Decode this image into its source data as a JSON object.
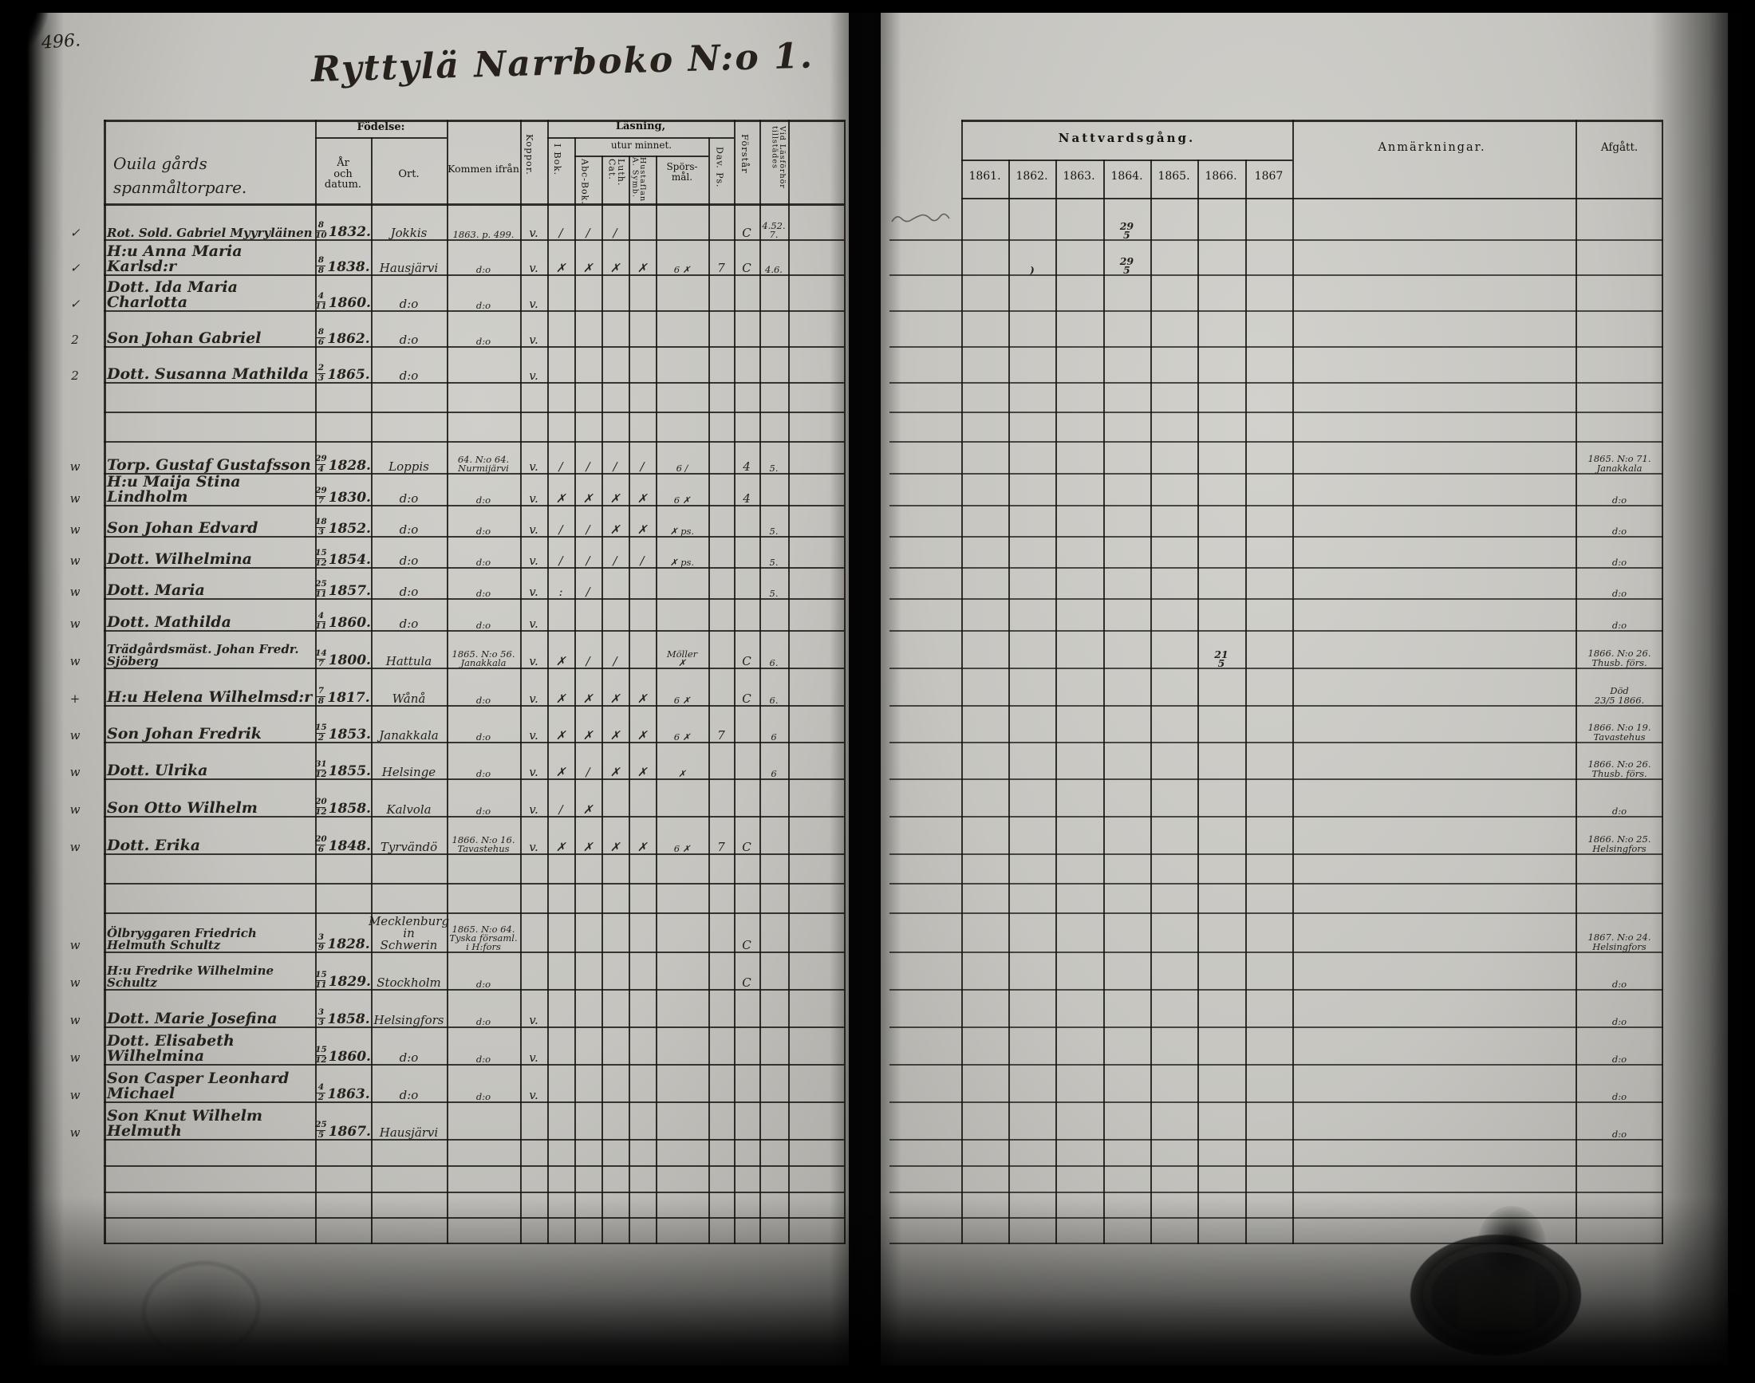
{
  "page": {
    "number": "496.",
    "title": "Ryttylä  Narrboko  N:o 1."
  },
  "header": {
    "household": "Ouila gårds\nspanmåltorpare.",
    "fodelse": "Födelse:",
    "ar_datum": "År\noch datum.",
    "ort": "Ort.",
    "kommen": "Kommen ifrån",
    "koppor": "Koppor.",
    "lasning": "Läsning,",
    "utur_minnet": "utur minnet.",
    "i_bok": "I Bok.",
    "abc_bok": "Abc-Bok.",
    "luth_cat": "Luth. Cat.",
    "symb": "Hustaflan  A. Symb.",
    "spors": "Spörs-\nmål.",
    "dav_ps": "Dav. Ps.",
    "forstar": "Förstår",
    "vidlas": "Vid Läsförhör tillstädes",
    "nattvardsgang": "Nattvardsgång.",
    "anmarkningar": "Anmärkningar.",
    "afgatt": "Afgått."
  },
  "years": [
    "1861.",
    "1862.",
    "1863.",
    "1864.",
    "1865.",
    "1866.",
    "1867"
  ],
  "rows": [
    {
      "mark": "✓",
      "name": "Rot. Sold. Gabriel Myyryläinen",
      "bd": "8",
      "bm": "10",
      "by": "1832.",
      "ort": "Jokkis",
      "kommen": "1863. p. 499.",
      "koppor": "v.",
      "ibok": "∕",
      "abc": "∕",
      "luth": "∕",
      "forstar": "C",
      "vidlas": "4.52.\n7.",
      "natt": {
        "1864": "29\n5"
      }
    },
    {
      "mark": "✓",
      "name": "H:u Anna Maria Karlsd:r",
      "bd": "8",
      "bm": "8",
      "by": "1838.",
      "ort": "Hausjärvi",
      "kommen": "d:o",
      "koppor": "v.",
      "ibok": "✗",
      "abc": "✗",
      "luth": "✗",
      "symb": "✗",
      "spors": "6 ✗",
      "dav": "7",
      "forstar": "C",
      "vidlas": "4.6.",
      "natt": {
        "1862": ")",
        "1864": "29\n5"
      }
    },
    {
      "mark": "✓",
      "name": "Dott. Ida Maria Charlotta",
      "bd": "4",
      "bm": "11",
      "by": "1860.",
      "ort": "d:o",
      "kommen": "d:o",
      "koppor": "v."
    },
    {
      "mark": "2",
      "name": "Son Johan Gabriel",
      "bd": "8",
      "bm": "6",
      "by": "1862.",
      "ort": "d:o",
      "kommen": "d:o",
      "koppor": "v."
    },
    {
      "mark": "2",
      "name": "Dott. Susanna Mathilda",
      "bd": "2",
      "bm": "3",
      "by": "1865.",
      "ort": "d:o",
      "koppor": "v."
    },
    {
      "mark": "w",
      "name": "Torp. Gustaf Gustafsson",
      "bd": "29",
      "bm": "4",
      "by": "1828.",
      "ort": "Loppis",
      "kommen": "64. N:o 64.\nNurmijärvi",
      "koppor": "v.",
      "ibok": "∕",
      "abc": "∕",
      "luth": "∕",
      "symb": "∕",
      "spors": "6 ∕",
      "forstar": "4",
      "vidlas": "5.",
      "afg": "1865. N:o 71.\nJanakkala"
    },
    {
      "mark": "w",
      "name": "H:u Maija Stina Lindholm",
      "bd": "29",
      "bm": "7",
      "by": "1830.",
      "ort": "d:o",
      "kommen": "d:o",
      "koppor": "v.",
      "ibok": "✗",
      "abc": "✗",
      "luth": "✗",
      "symb": "✗",
      "spors": "6 ✗",
      "forstar": "4",
      "afg": "d:o"
    },
    {
      "mark": "w",
      "name": "Son Johan Edvard",
      "bd": "18",
      "bm": "3",
      "by": "1852.",
      "ort": "d:o",
      "kommen": "d:o",
      "koppor": "v.",
      "ibok": "∕",
      "abc": "∕",
      "luth": "✗",
      "symb": "✗",
      "spors": "✗ ps.",
      "vidlas": "5.",
      "afg": "d:o"
    },
    {
      "mark": "w",
      "name": "Dott. Wilhelmina",
      "bd": "15",
      "bm": "12",
      "by": "1854.",
      "ort": "d:o",
      "kommen": "d:o",
      "koppor": "v.",
      "ibok": "∕",
      "abc": "∕",
      "luth": "∕",
      "symb": "∕",
      "spors": "✗ ps.",
      "vidlas": "5.",
      "afg": "d:o"
    },
    {
      "mark": "w",
      "name": "Dott. Maria",
      "bd": "25",
      "bm": "11",
      "by": "1857.",
      "ort": "d:o",
      "kommen": "d:o",
      "koppor": "v.",
      "ibok": ":",
      "abc": "∕",
      "vidlas": "5.",
      "afg": "d:o"
    },
    {
      "mark": "w",
      "name": "Dott. Mathilda",
      "bd": "4",
      "bm": "11",
      "by": "1860.",
      "ort": "d:o",
      "kommen": "d:o",
      "koppor": "v.",
      "afg": "d:o"
    },
    {
      "mark": "w",
      "name": "Trädgårdsmäst. Johan Fredr. Sjöberg",
      "bd": "14",
      "bm": "7",
      "by": "1800.",
      "ort": "Hattula",
      "kommen": "1865. N:o 56.\nJanakkala",
      "koppor": "v.",
      "ibok": "✗",
      "abc": "∕",
      "luth": "∕",
      "spors": "Möller\n✗",
      "forstar": "C",
      "vidlas": "6.",
      "natt": {
        "1866": "21\n5"
      },
      "afg": "1866. N:o 26.\nThusb. förs."
    },
    {
      "mark": "+",
      "name": "H:u Helena Wilhelmsd:r",
      "bd": "7",
      "bm": "8",
      "by": "1817.",
      "ort": "Wånå",
      "kommen": "d:o",
      "koppor": "v.",
      "ibok": "✗",
      "abc": "✗",
      "luth": "✗",
      "symb": "✗",
      "spors": "6 ✗",
      "forstar": "C",
      "vidlas": "6.",
      "afg": "Död\n23/5 1866."
    },
    {
      "mark": "w",
      "name": "Son Johan Fredrik",
      "bd": "15",
      "bm": "2",
      "by": "1853.",
      "ort": "Janakkala",
      "kommen": "d:o",
      "koppor": "v.",
      "ibok": "✗",
      "abc": "✗",
      "luth": "✗",
      "symb": "✗",
      "spors": "6 ✗",
      "dav": "7",
      "vidlas": "6",
      "afg": "1866. N:o 19.\nTavastehus"
    },
    {
      "mark": "w",
      "name": "Dott. Ulrika",
      "bd": "31",
      "bm": "12",
      "by": "1855.",
      "ort": "Helsinge",
      "kommen": "d:o",
      "koppor": "v.",
      "ibok": "✗",
      "abc": "∕",
      "luth": "✗",
      "symb": "✗",
      "spors": "✗",
      "vidlas": "6",
      "afg": "1866. N:o 26.\nThusb. förs."
    },
    {
      "mark": "w",
      "name": "Son Otto Wilhelm",
      "bd": "20",
      "bm": "12",
      "by": "1858.",
      "ort": "Kalvola",
      "kommen": "d:o",
      "koppor": "v.",
      "ibok": "∕",
      "abc": "✗",
      "afg": "d:o"
    },
    {
      "mark": "w",
      "name": "Dott. Erika",
      "bd": "20",
      "bm": "6",
      "by": "1848.",
      "ort": "Tyrvändö",
      "kommen": "1866. N:o 16.\nTavastehus",
      "koppor": "v.",
      "ibok": "✗",
      "abc": "✗",
      "luth": "✗",
      "symb": "✗",
      "spors": "6 ✗",
      "dav": "7",
      "forstar": "C",
      "afg": "1866. N:o 25.\nHelsingfors"
    },
    {
      "mark": "w",
      "name": "Ölbryggaren Friedrich Helmuth Schultz",
      "bd": "3",
      "bm": "9",
      "by": "1828.",
      "ort": "Mecklenburg in\nSchwerin",
      "kommen": "1865. N:o 64.\nTyska församl.\ni H:fors",
      "forstar": "C",
      "afg": "1867. N:o 24.\nHelsingfors"
    },
    {
      "mark": "w",
      "name": "H:u Fredrike Wilhelmine Schultz",
      "bd": "15",
      "bm": "11",
      "by": "1829.",
      "ort": "Stockholm",
      "kommen": "d:o",
      "forstar": "C",
      "afg": "d:o"
    },
    {
      "mark": "w",
      "name": "Dott. Marie Josefina",
      "bd": "3",
      "bm": "3",
      "by": "1858.",
      "ort": "Helsingfors",
      "kommen": "d:o",
      "koppor": "v.",
      "afg": "d:o"
    },
    {
      "mark": "w",
      "name": "Dott. Elisabeth Wilhelmina",
      "bd": "15",
      "bm": "12",
      "by": "1860.",
      "ort": "d:o",
      "kommen": "d:o",
      "koppor": "v.",
      "afg": "d:o"
    },
    {
      "mark": "w",
      "name": "Son Casper Leonhard Michael",
      "bd": "4",
      "bm": "2",
      "by": "1863.",
      "ort": "d:o",
      "kommen": "d:o",
      "koppor": "v.",
      "afg": "d:o"
    },
    {
      "mark": "w",
      "name": "Son Knut Wilhelm Helmuth",
      "bd": "25",
      "bm": "5",
      "by": "1867.",
      "ort": "Hausjärvi",
      "afg": "d:o"
    }
  ]
}
